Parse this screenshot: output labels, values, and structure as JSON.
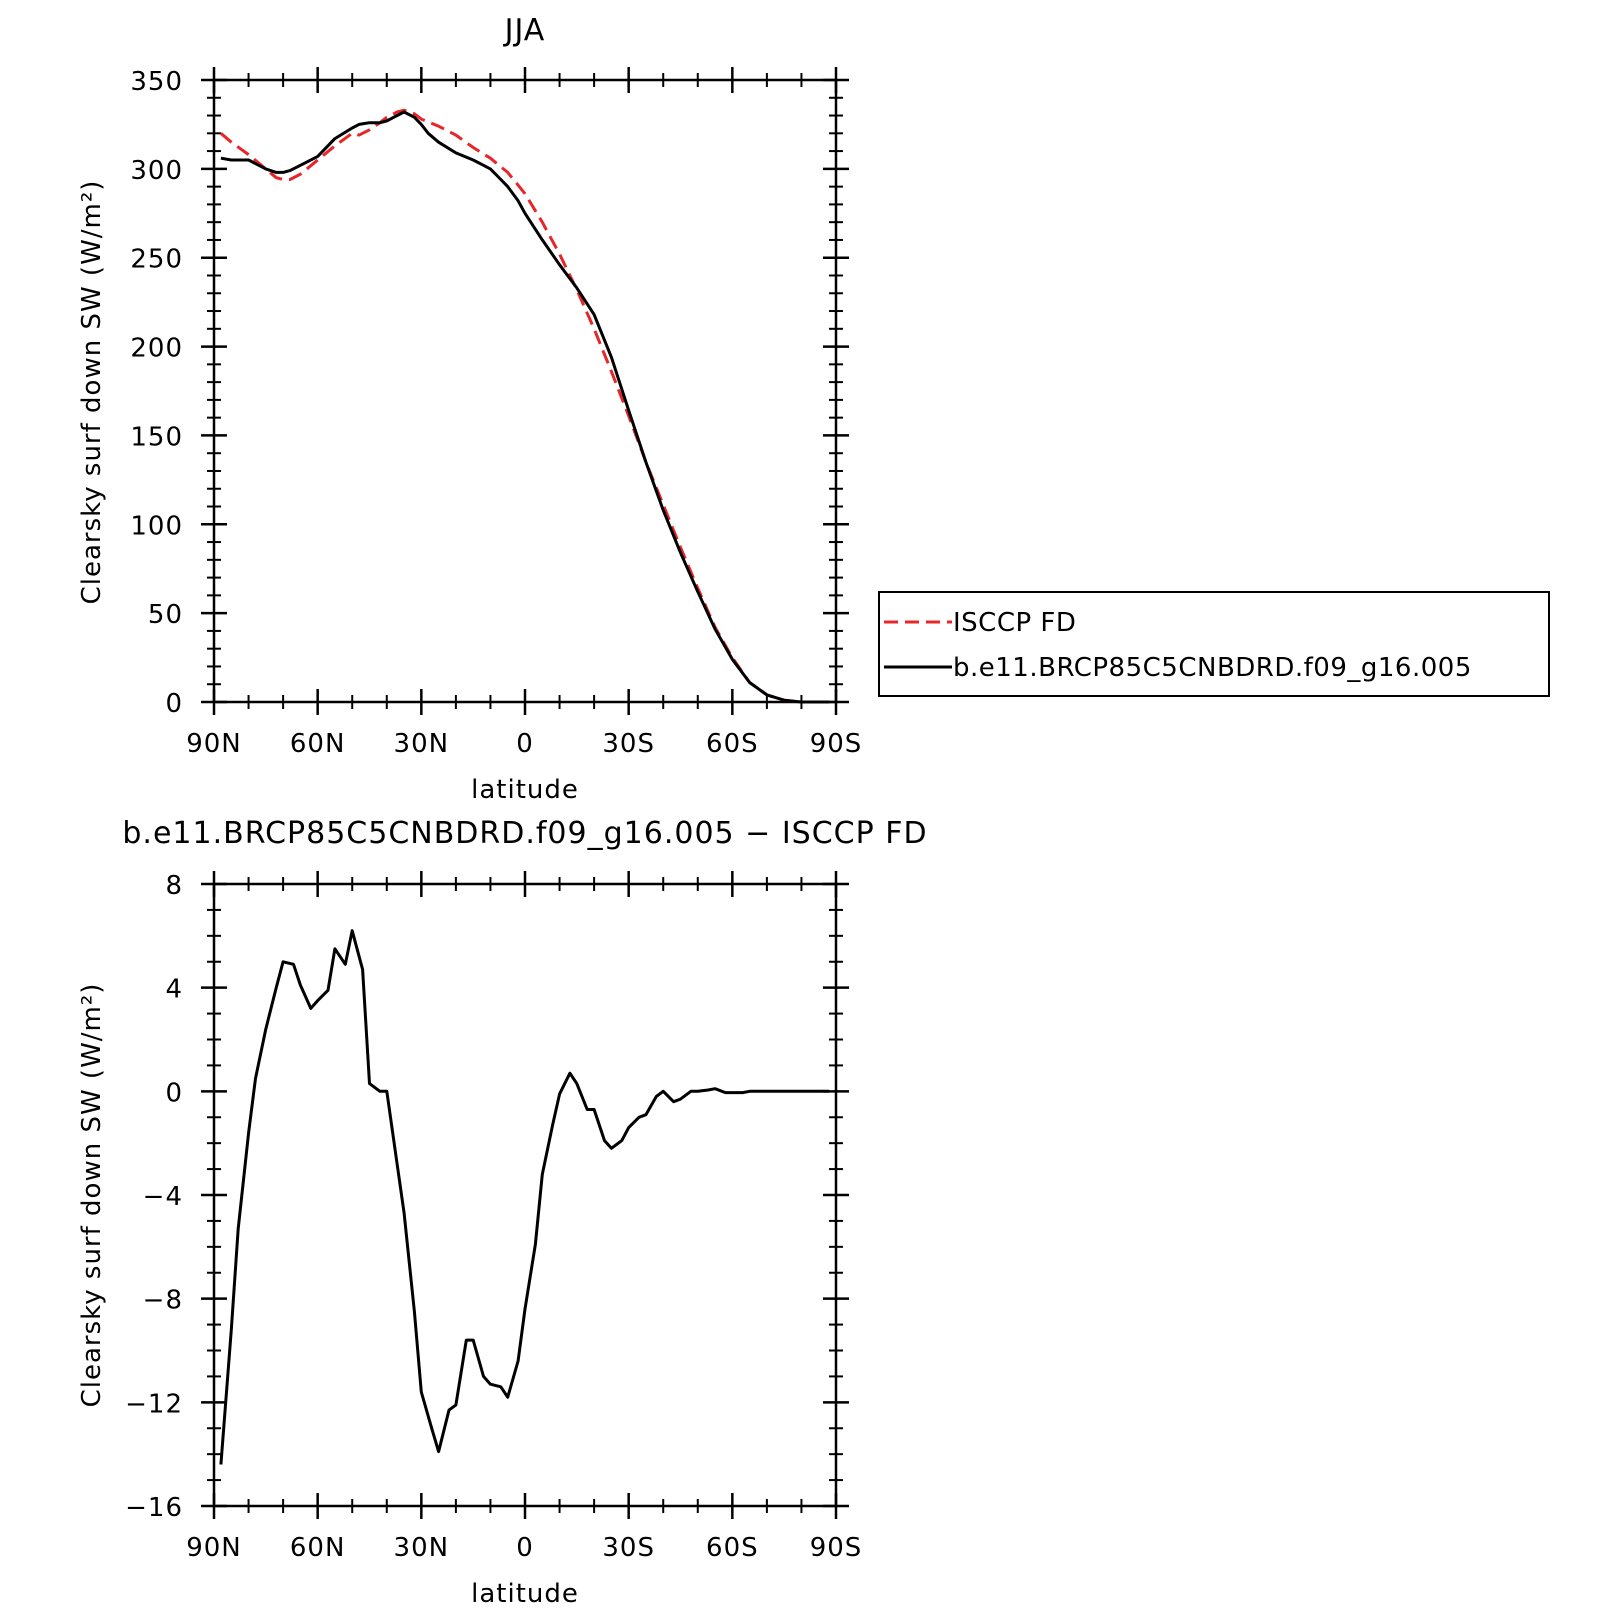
{
  "colors": {
    "model": "#000000",
    "obs": "#e8262a",
    "frame": "#000000",
    "background": "#ffffff"
  },
  "chart_data": [
    {
      "type": "line",
      "title": "JJA",
      "xlabel": "latitude",
      "ylabel": "Clearsky surf down SW (W/m²)",
      "xlim": [
        90,
        -90
      ],
      "ylim": [
        0,
        350
      ],
      "x_ticks": [
        {
          "value": 90,
          "label": "90N"
        },
        {
          "value": 60,
          "label": "60N"
        },
        {
          "value": 30,
          "label": "30N"
        },
        {
          "value": 0,
          "label": "0"
        },
        {
          "value": -30,
          "label": "30S"
        },
        {
          "value": -60,
          "label": "60S"
        },
        {
          "value": -90,
          "label": "90S"
        }
      ],
      "y_ticks": [
        {
          "value": 0,
          "label": "0"
        },
        {
          "value": 50,
          "label": "50"
        },
        {
          "value": 100,
          "label": "100"
        },
        {
          "value": 150,
          "label": "150"
        },
        {
          "value": 200,
          "label": "200"
        },
        {
          "value": 250,
          "label": "250"
        },
        {
          "value": 300,
          "label": "300"
        },
        {
          "value": 350,
          "label": "350"
        }
      ],
      "legend": {
        "placement": "right"
      },
      "series": [
        {
          "name": "ISCCP FD",
          "style": "dashed",
          "color": "#e8262a",
          "x": [
            88,
            85,
            80,
            75,
            72,
            70,
            68,
            65,
            60,
            55,
            50,
            48,
            45,
            42,
            40,
            37,
            35,
            32,
            30,
            25,
            20,
            15,
            10,
            5,
            0,
            -5,
            -10,
            -15,
            -20,
            -25,
            -30,
            -35,
            -40,
            -45,
            -50,
            -55,
            -60,
            -65,
            -70,
            -75,
            -80,
            -85,
            -88
          ],
          "y": [
            320,
            315,
            308,
            300,
            295,
            294,
            294,
            297,
            305,
            313,
            320,
            319,
            322,
            326,
            329,
            332,
            333,
            331,
            328,
            324,
            319,
            312,
            306,
            298,
            286,
            270,
            252,
            232,
            210,
            186,
            161,
            135,
            111,
            87,
            64,
            42,
            25,
            11,
            4,
            1,
            0,
            0,
            0
          ]
        },
        {
          "name": "b.e11.BRCP85C5CNBDRD.f09_g16.005",
          "style": "solid",
          "color": "#000000",
          "x": [
            88,
            85,
            80,
            75,
            72,
            70,
            68,
            65,
            60,
            55,
            50,
            48,
            45,
            42,
            40,
            37,
            35,
            32,
            30,
            28,
            25,
            20,
            15,
            12,
            10,
            8,
            5,
            2,
            0,
            -5,
            -10,
            -15,
            -20,
            -25,
            -30,
            -35,
            -40,
            -45,
            -50,
            -55,
            -60,
            -65,
            -70,
            -75,
            -80,
            -85,
            -88
          ],
          "y": [
            306,
            305,
            305,
            300,
            298,
            298,
            299,
            302,
            307,
            317,
            323,
            325,
            326,
            326,
            327,
            330,
            332,
            329,
            325,
            320,
            315,
            309,
            305,
            302,
            300,
            296,
            290,
            282,
            275,
            260,
            246,
            233,
            218,
            194,
            164,
            135,
            108,
            84,
            62,
            41,
            24,
            11,
            4,
            1,
            0,
            0,
            0
          ]
        }
      ]
    },
    {
      "type": "line",
      "title": "b.e11.BRCP85C5CNBDRD.f09_g16.005 − ISCCP FD",
      "xlabel": "latitude",
      "ylabel": "Clearsky surf down SW (W/m²)",
      "xlim": [
        90,
        -90
      ],
      "ylim": [
        -16,
        8
      ],
      "x_ticks": [
        {
          "value": 90,
          "label": "90N"
        },
        {
          "value": 60,
          "label": "60N"
        },
        {
          "value": 30,
          "label": "30N"
        },
        {
          "value": 0,
          "label": "0"
        },
        {
          "value": -30,
          "label": "30S"
        },
        {
          "value": -60,
          "label": "60S"
        },
        {
          "value": -90,
          "label": "90S"
        }
      ],
      "y_ticks": [
        {
          "value": -16,
          "label": "−16"
        },
        {
          "value": -12,
          "label": "−12"
        },
        {
          "value": -8,
          "label": "−8"
        },
        {
          "value": -4,
          "label": "−4"
        },
        {
          "value": 0,
          "label": "0"
        },
        {
          "value": 4,
          "label": "4"
        },
        {
          "value": 8,
          "label": "8"
        }
      ],
      "series": [
        {
          "color": "#000000",
          "style": "solid",
          "x": [
            88,
            85,
            83,
            80,
            78,
            75,
            72,
            70,
            67,
            65,
            62,
            60,
            57,
            55,
            52,
            50,
            47,
            45,
            42,
            40,
            37,
            35,
            32,
            30,
            27,
            25,
            22,
            20,
            17,
            15,
            12,
            10,
            7,
            5,
            2,
            0,
            -3,
            -5,
            -8,
            -10,
            -13,
            -15,
            -18,
            -20,
            -23,
            -25,
            -28,
            -30,
            -33,
            -35,
            -38,
            -40,
            -43,
            -45,
            -48,
            -50,
            -53,
            -55,
            -58,
            -60,
            -63,
            -65,
            -68,
            -70,
            -73,
            -75,
            -78,
            -80,
            -83,
            -85,
            -88
          ],
          "y": [
            -14.4,
            -9.2,
            -5.3,
            -1.6,
            0.5,
            2.4,
            4.0,
            5.0,
            4.9,
            4.1,
            3.2,
            3.5,
            3.9,
            5.5,
            4.9,
            6.2,
            4.7,
            0.3,
            0.0,
            0.0,
            -2.8,
            -4.7,
            -8.5,
            -11.6,
            -13.0,
            -13.9,
            -12.3,
            -12.1,
            -9.6,
            -9.6,
            -11.0,
            -11.3,
            -11.4,
            -11.8,
            -10.4,
            -8.4,
            -5.9,
            -3.2,
            -1.3,
            -0.1,
            0.7,
            0.3,
            -0.7,
            -0.7,
            -1.9,
            -2.2,
            -1.9,
            -1.4,
            -1.0,
            -0.9,
            -0.2,
            0.0,
            -0.4,
            -0.3,
            0.0,
            0.0,
            0.05,
            0.1,
            -0.05,
            -0.05,
            -0.05,
            0.0,
            0.0,
            0.0,
            0.0,
            0.0,
            0.0,
            0.0,
            0.0,
            0.0,
            0.0
          ]
        }
      ]
    }
  ]
}
